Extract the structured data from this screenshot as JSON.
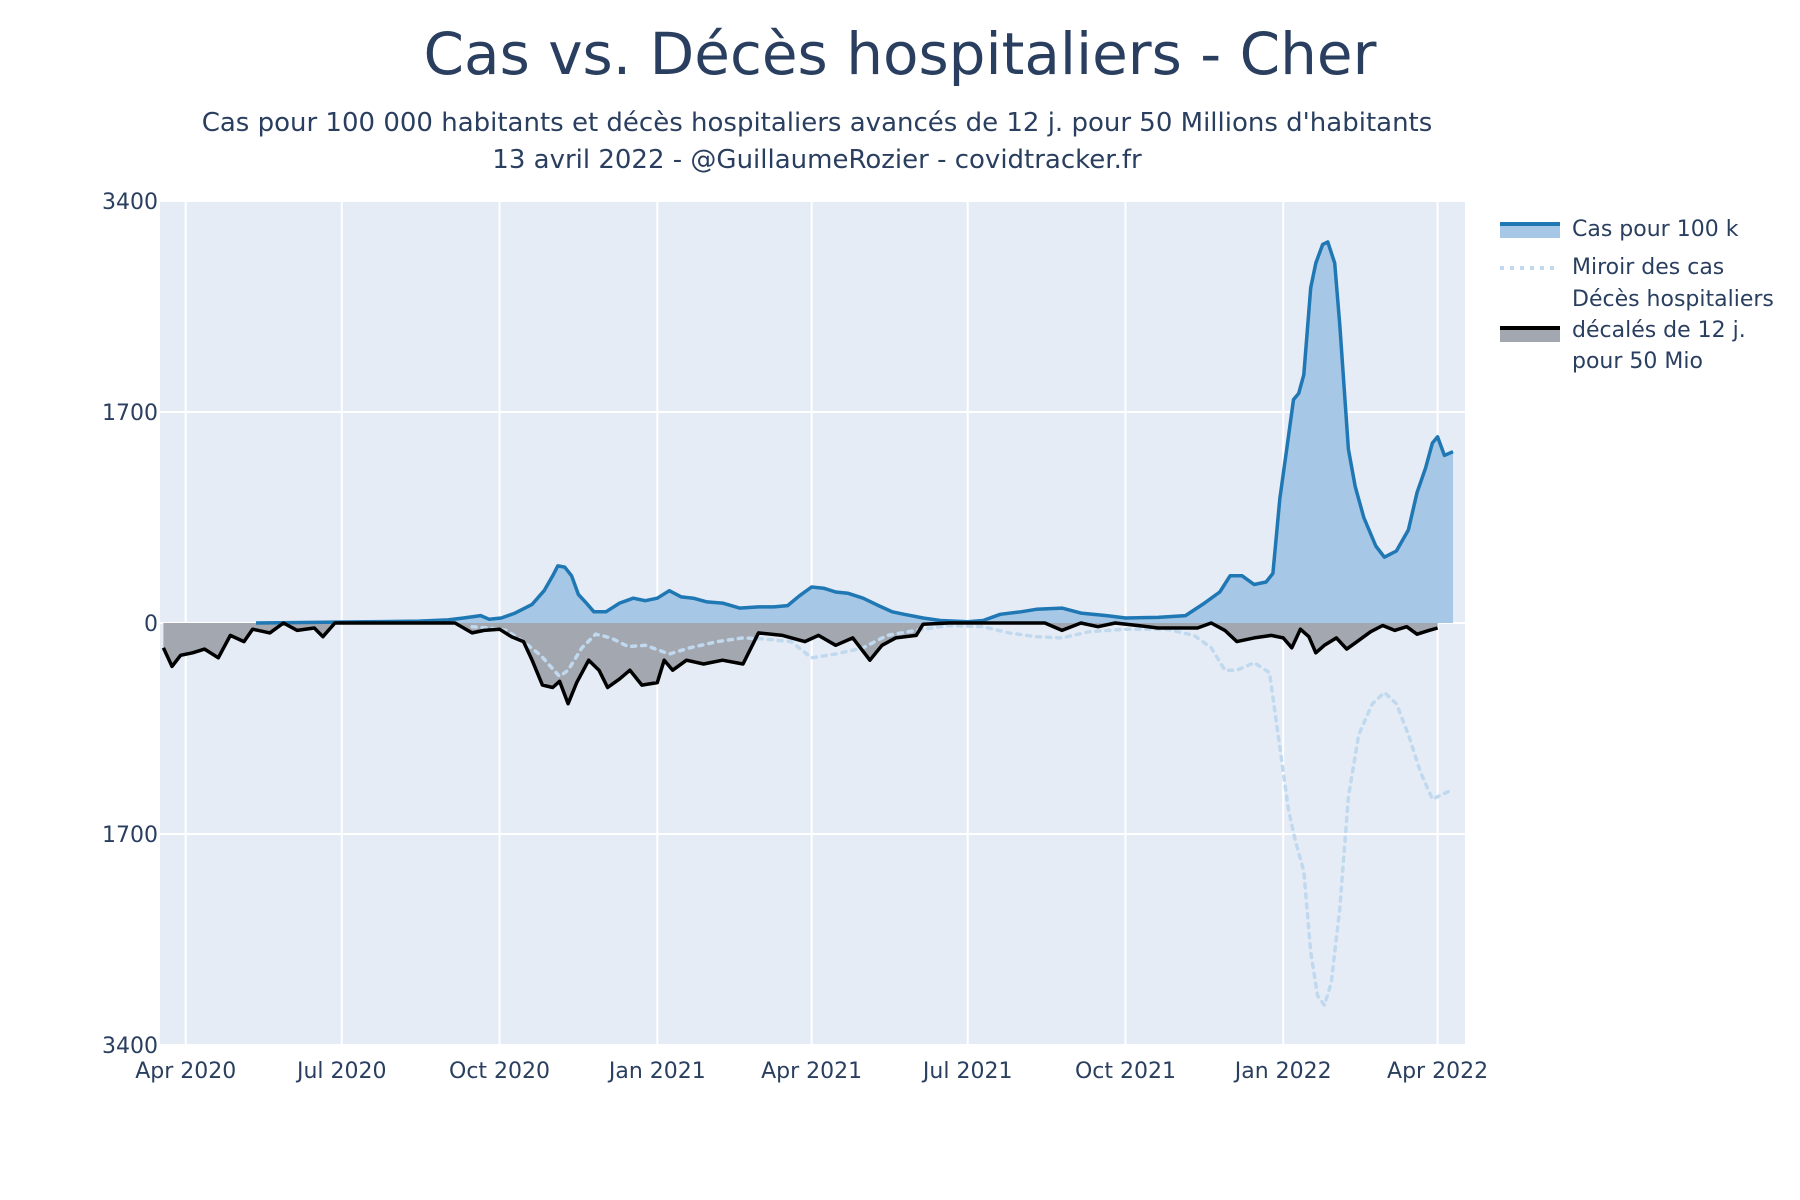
{
  "title": "Cas vs. Décès hospitaliers - Cher",
  "subtitle_line1": "Cas pour 100 000 habitants et décès hospitaliers avancés de 12 j. pour 50 Millions d'habitants",
  "subtitle_line2": "13 avril 2022 - @GuillaumeRozier - covidtracker.fr",
  "colors": {
    "plot_bg": "#e5ecf6",
    "grid": "#ffffff",
    "cases_line": "#1f77b4",
    "cases_fill": "#a6c8e6",
    "mirror_line": "#c0d9ee",
    "deaths_line": "#000000",
    "deaths_fill": "#a3a7b0"
  },
  "legend": {
    "cases": "Cas pour 100 k",
    "mirror": "Miroir des cas",
    "deaths_line1": "Décès hospitaliers",
    "deaths_line2": "décalés de 12 j.",
    "deaths_line3": "pour 50 Mio"
  },
  "chart_data": {
    "type": "area",
    "title": "Cas vs. Décès hospitaliers - Cher",
    "y_ticks": [
      {
        "label": "3400",
        "value": 3400
      },
      {
        "label": "1700",
        "value": 1700
      },
      {
        "label": "0",
        "value": 0
      },
      {
        "label": "1700",
        "value": -1700
      },
      {
        "label": "3400",
        "value": -3400
      }
    ],
    "ylim": [
      -3400,
      3400
    ],
    "xlim": [
      "2020-03-17",
      "2022-04-17"
    ],
    "x_ticks": [
      {
        "label": "Apr 2020",
        "date": "2020-04-01"
      },
      {
        "label": "Jul 2020",
        "date": "2020-07-01"
      },
      {
        "label": "Oct 2020",
        "date": "2020-10-01"
      },
      {
        "label": "Jan 2021",
        "date": "2021-01-01"
      },
      {
        "label": "Apr 2021",
        "date": "2021-04-01"
      },
      {
        "label": "Jul 2021",
        "date": "2021-07-01"
      },
      {
        "label": "Oct 2021",
        "date": "2021-10-01"
      },
      {
        "label": "Jan 2022",
        "date": "2022-01-01"
      },
      {
        "label": "Apr 2022",
        "date": "2022-04-01"
      }
    ],
    "grid": true,
    "legend_position": "right",
    "series": [
      {
        "name": "Cas pour 100 k",
        "style": "line+fill",
        "points": [
          [
            "2020-05-12",
            0
          ],
          [
            "2020-06-15",
            5
          ],
          [
            "2020-07-15",
            10
          ],
          [
            "2020-08-15",
            15
          ],
          [
            "2020-09-01",
            25
          ],
          [
            "2020-09-10",
            40
          ],
          [
            "2020-09-20",
            60
          ],
          [
            "2020-09-25",
            30
          ],
          [
            "2020-10-02",
            40
          ],
          [
            "2020-10-10",
            80
          ],
          [
            "2020-10-20",
            150
          ],
          [
            "2020-10-27",
            260
          ],
          [
            "2020-11-01",
            380
          ],
          [
            "2020-11-04",
            460
          ],
          [
            "2020-11-08",
            450
          ],
          [
            "2020-11-12",
            380
          ],
          [
            "2020-11-16",
            230
          ],
          [
            "2020-11-20",
            170
          ],
          [
            "2020-11-25",
            90
          ],
          [
            "2020-12-02",
            90
          ],
          [
            "2020-12-10",
            160
          ],
          [
            "2020-12-18",
            200
          ],
          [
            "2020-12-25",
            180
          ],
          [
            "2021-01-01",
            200
          ],
          [
            "2021-01-08",
            260
          ],
          [
            "2021-01-15",
            210
          ],
          [
            "2021-01-22",
            200
          ],
          [
            "2021-01-30",
            170
          ],
          [
            "2021-02-08",
            160
          ],
          [
            "2021-02-18",
            120
          ],
          [
            "2021-03-01",
            130
          ],
          [
            "2021-03-10",
            130
          ],
          [
            "2021-03-18",
            140
          ],
          [
            "2021-03-25",
            220
          ],
          [
            "2021-04-01",
            290
          ],
          [
            "2021-04-08",
            280
          ],
          [
            "2021-04-15",
            250
          ],
          [
            "2021-04-22",
            240
          ],
          [
            "2021-05-01",
            200
          ],
          [
            "2021-05-10",
            140
          ],
          [
            "2021-05-18",
            90
          ],
          [
            "2021-05-25",
            70
          ],
          [
            "2021-06-05",
            40
          ],
          [
            "2021-06-15",
            20
          ],
          [
            "2021-07-01",
            10
          ],
          [
            "2021-07-10",
            20
          ],
          [
            "2021-07-20",
            70
          ],
          [
            "2021-08-01",
            90
          ],
          [
            "2021-08-10",
            110
          ],
          [
            "2021-08-25",
            120
          ],
          [
            "2021-09-05",
            80
          ],
          [
            "2021-09-20",
            60
          ],
          [
            "2021-10-01",
            40
          ],
          [
            "2021-10-20",
            45
          ],
          [
            "2021-11-05",
            60
          ],
          [
            "2021-11-15",
            150
          ],
          [
            "2021-11-25",
            250
          ],
          [
            "2021-12-01",
            380
          ],
          [
            "2021-12-08",
            380
          ],
          [
            "2021-12-15",
            310
          ],
          [
            "2021-12-22",
            330
          ],
          [
            "2021-12-26",
            400
          ],
          [
            "2021-12-30",
            1000
          ],
          [
            "2022-01-03",
            1400
          ],
          [
            "2022-01-07",
            1800
          ],
          [
            "2022-01-10",
            1850
          ],
          [
            "2022-01-13",
            2000
          ],
          [
            "2022-01-17",
            2700
          ],
          [
            "2022-01-20",
            2900
          ],
          [
            "2022-01-24",
            3050
          ],
          [
            "2022-01-27",
            3070
          ],
          [
            "2022-01-31",
            2900
          ],
          [
            "2022-02-03",
            2400
          ],
          [
            "2022-02-08",
            1400
          ],
          [
            "2022-02-12",
            1100
          ],
          [
            "2022-02-17",
            850
          ],
          [
            "2022-02-24",
            620
          ],
          [
            "2022-03-01",
            530
          ],
          [
            "2022-03-08",
            580
          ],
          [
            "2022-03-15",
            750
          ],
          [
            "2022-03-20",
            1050
          ],
          [
            "2022-03-25",
            1250
          ],
          [
            "2022-03-29",
            1450
          ],
          [
            "2022-04-01",
            1500
          ],
          [
            "2022-04-05",
            1350
          ],
          [
            "2022-04-10",
            1380
          ]
        ]
      },
      {
        "name": "Miroir des cas",
        "style": "dotted",
        "points": [
          [
            "2020-09-15",
            -30
          ],
          [
            "2020-09-25",
            -40
          ],
          [
            "2020-10-05",
            -60
          ],
          [
            "2020-10-15",
            -150
          ],
          [
            "2020-10-25",
            -260
          ],
          [
            "2020-11-01",
            -370
          ],
          [
            "2020-11-05",
            -430
          ],
          [
            "2020-11-10",
            -380
          ],
          [
            "2020-11-18",
            -200
          ],
          [
            "2020-11-26",
            -90
          ],
          [
            "2020-12-05",
            -120
          ],
          [
            "2020-12-15",
            -190
          ],
          [
            "2020-12-25",
            -180
          ],
          [
            "2021-01-08",
            -250
          ],
          [
            "2021-01-20",
            -200
          ],
          [
            "2021-02-05",
            -150
          ],
          [
            "2021-02-20",
            -120
          ],
          [
            "2021-03-05",
            -130
          ],
          [
            "2021-03-20",
            -150
          ],
          [
            "2021-04-01",
            -280
          ],
          [
            "2021-04-15",
            -250
          ],
          [
            "2021-05-01",
            -200
          ],
          [
            "2021-05-15",
            -100
          ],
          [
            "2021-06-01",
            -60
          ],
          [
            "2021-06-20",
            -20
          ],
          [
            "2021-07-10",
            -30
          ],
          [
            "2021-07-25",
            -80
          ],
          [
            "2021-08-10",
            -110
          ],
          [
            "2021-08-25",
            -120
          ],
          [
            "2021-09-10",
            -70
          ],
          [
            "2021-10-01",
            -50
          ],
          [
            "2021-10-25",
            -50
          ],
          [
            "2021-11-10",
            -100
          ],
          [
            "2021-11-20",
            -200
          ],
          [
            "2021-11-28",
            -380
          ],
          [
            "2021-12-05",
            -380
          ],
          [
            "2021-12-15",
            -320
          ],
          [
            "2021-12-24",
            -400
          ],
          [
            "2021-12-30",
            -1000
          ],
          [
            "2022-01-04",
            -1500
          ],
          [
            "2022-01-08",
            -1750
          ],
          [
            "2022-01-13",
            -2000
          ],
          [
            "2022-01-17",
            -2650
          ],
          [
            "2022-01-21",
            -3000
          ],
          [
            "2022-01-25",
            -3080
          ],
          [
            "2022-01-29",
            -2900
          ],
          [
            "2022-02-03",
            -2300
          ],
          [
            "2022-02-08",
            -1400
          ],
          [
            "2022-02-14",
            -900
          ],
          [
            "2022-02-22",
            -650
          ],
          [
            "2022-03-01",
            -560
          ],
          [
            "2022-03-08",
            -650
          ],
          [
            "2022-03-15",
            -900
          ],
          [
            "2022-03-22",
            -1200
          ],
          [
            "2022-03-29",
            -1420
          ],
          [
            "2022-04-04",
            -1380
          ],
          [
            "2022-04-10",
            -1340
          ]
        ]
      },
      {
        "name": "Décès hospitaliers décalés de 12 j. pour 50 Mio",
        "style": "line+fill",
        "points": [
          [
            "2020-03-19",
            -200
          ],
          [
            "2020-03-24",
            -350
          ],
          [
            "2020-03-29",
            -260
          ],
          [
            "2020-04-05",
            -240
          ],
          [
            "2020-04-12",
            -210
          ],
          [
            "2020-04-20",
            -280
          ],
          [
            "2020-04-27",
            -100
          ],
          [
            "2020-05-05",
            -150
          ],
          [
            "2020-05-10",
            -50
          ],
          [
            "2020-05-20",
            -80
          ],
          [
            "2020-05-28",
            0
          ],
          [
            "2020-06-05",
            -60
          ],
          [
            "2020-06-15",
            -40
          ],
          [
            "2020-06-20",
            -110
          ],
          [
            "2020-06-27",
            0
          ],
          [
            "2020-07-15",
            0
          ],
          [
            "2020-08-15",
            0
          ],
          [
            "2020-09-05",
            0
          ],
          [
            "2020-09-15",
            -80
          ],
          [
            "2020-09-22",
            -60
          ],
          [
            "2020-10-01",
            -50
          ],
          [
            "2020-10-08",
            -110
          ],
          [
            "2020-10-15",
            -150
          ],
          [
            "2020-10-20",
            -300
          ],
          [
            "2020-10-26",
            -500
          ],
          [
            "2020-11-01",
            -520
          ],
          [
            "2020-11-05",
            -470
          ],
          [
            "2020-11-10",
            -650
          ],
          [
            "2020-11-15",
            -480
          ],
          [
            "2020-11-22",
            -300
          ],
          [
            "2020-11-28",
            -380
          ],
          [
            "2020-12-03",
            -520
          ],
          [
            "2020-12-10",
            -450
          ],
          [
            "2020-12-16",
            -380
          ],
          [
            "2020-12-23",
            -500
          ],
          [
            "2021-01-01",
            -480
          ],
          [
            "2021-01-05",
            -300
          ],
          [
            "2021-01-10",
            -380
          ],
          [
            "2021-01-18",
            -300
          ],
          [
            "2021-01-28",
            -330
          ],
          [
            "2021-02-08",
            -300
          ],
          [
            "2021-02-20",
            -330
          ],
          [
            "2021-03-01",
            -80
          ],
          [
            "2021-03-15",
            -100
          ],
          [
            "2021-03-28",
            -150
          ],
          [
            "2021-04-05",
            -100
          ],
          [
            "2021-04-15",
            -180
          ],
          [
            "2021-04-25",
            -120
          ],
          [
            "2021-05-05",
            -300
          ],
          [
            "2021-05-12",
            -180
          ],
          [
            "2021-05-20",
            -120
          ],
          [
            "2021-06-01",
            -100
          ],
          [
            "2021-06-05",
            -10
          ],
          [
            "2021-06-20",
            0
          ],
          [
            "2021-07-10",
            0
          ],
          [
            "2021-08-15",
            0
          ],
          [
            "2021-08-25",
            -60
          ],
          [
            "2021-09-05",
            0
          ],
          [
            "2021-09-15",
            -30
          ],
          [
            "2021-09-25",
            0
          ],
          [
            "2021-10-08",
            -20
          ],
          [
            "2021-10-20",
            -40
          ],
          [
            "2021-11-01",
            -40
          ],
          [
            "2021-11-12",
            -40
          ],
          [
            "2021-11-20",
            0
          ],
          [
            "2021-11-28",
            -60
          ],
          [
            "2021-12-05",
            -150
          ],
          [
            "2021-12-15",
            -120
          ],
          [
            "2021-12-25",
            -100
          ],
          [
            "2022-01-01",
            -120
          ],
          [
            "2022-01-06",
            -200
          ],
          [
            "2022-01-11",
            -50
          ],
          [
            "2022-01-16",
            -110
          ],
          [
            "2022-01-20",
            -240
          ],
          [
            "2022-01-25",
            -180
          ],
          [
            "2022-02-01",
            -120
          ],
          [
            "2022-02-07",
            -210
          ],
          [
            "2022-02-14",
            -140
          ],
          [
            "2022-02-21",
            -70
          ],
          [
            "2022-02-28",
            -20
          ],
          [
            "2022-03-07",
            -60
          ],
          [
            "2022-03-14",
            -30
          ],
          [
            "2022-03-20",
            -90
          ],
          [
            "2022-03-27",
            -60
          ],
          [
            "2022-04-01",
            -40
          ]
        ]
      }
    ]
  }
}
